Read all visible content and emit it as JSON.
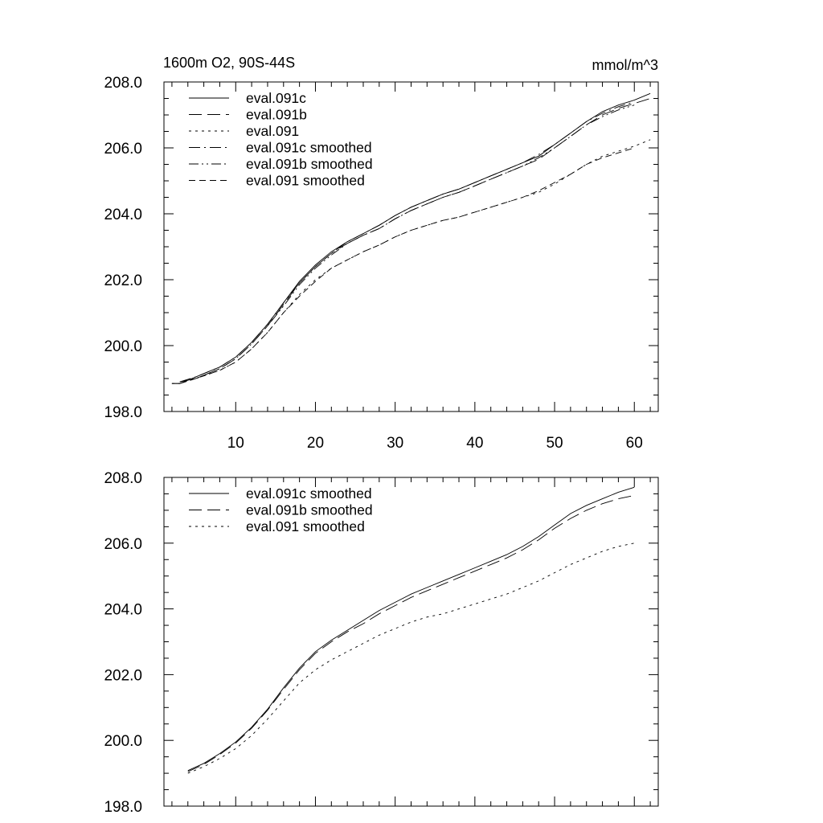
{
  "chart_data": [
    {
      "type": "line",
      "title": "1600m O2, 90S-44S",
      "units": "mmol/m^3",
      "xlim": [
        1,
        63
      ],
      "ylim": [
        198,
        208
      ],
      "yticks": [
        "198.0",
        "200.0",
        "202.0",
        "204.0",
        "206.0",
        "208.0"
      ],
      "xticks": [
        "10",
        "20",
        "30",
        "40",
        "50",
        "60"
      ],
      "grid": false,
      "legend_position": "top-left",
      "series": [
        {
          "name": "eval.091c",
          "dash": "solid",
          "x": [
            2,
            3,
            5,
            8,
            10,
            12,
            14,
            16,
            18,
            20,
            22,
            24,
            26,
            28,
            30,
            32,
            34,
            36,
            38,
            40,
            42,
            44,
            46,
            48,
            50,
            52,
            54,
            56,
            58,
            60,
            62
          ],
          "values": [
            198.85,
            198.85,
            199.05,
            199.35,
            199.65,
            200.1,
            200.65,
            201.3,
            201.95,
            202.45,
            202.85,
            203.15,
            203.4,
            203.65,
            203.95,
            204.2,
            204.4,
            204.6,
            204.75,
            204.95,
            205.15,
            205.35,
            205.55,
            205.75,
            206.1,
            206.45,
            206.8,
            207.1,
            207.3,
            207.45,
            207.65
          ]
        },
        {
          "name": "eval.091b",
          "dash": "long-dash",
          "x": [
            2,
            3,
            5,
            8,
            10,
            12,
            14,
            16,
            18,
            20,
            22,
            24,
            26,
            28,
            30,
            32,
            34,
            36,
            38,
            40,
            42,
            44,
            46,
            48,
            50,
            52,
            54,
            56,
            58,
            60,
            62
          ],
          "values": [
            198.85,
            198.85,
            199.0,
            199.3,
            199.6,
            200.05,
            200.6,
            201.25,
            201.9,
            202.4,
            202.8,
            203.1,
            203.35,
            203.55,
            203.85,
            204.1,
            204.3,
            204.5,
            204.65,
            204.85,
            205.05,
            205.25,
            205.45,
            205.65,
            206.0,
            206.35,
            206.7,
            207.0,
            207.2,
            207.35,
            207.5
          ]
        },
        {
          "name": "eval.091",
          "dash": "dotted",
          "x": [
            2,
            3,
            5,
            8,
            10,
            12,
            14,
            16,
            18,
            20,
            22,
            24,
            26,
            28,
            30,
            32,
            34,
            36,
            38,
            40,
            42,
            44,
            46,
            48,
            50,
            52,
            54,
            56,
            58,
            60,
            62
          ],
          "values": [
            198.85,
            198.85,
            199.0,
            199.25,
            199.5,
            199.9,
            200.4,
            201.0,
            201.55,
            202.0,
            202.35,
            202.6,
            202.85,
            203.05,
            203.3,
            203.5,
            203.65,
            203.8,
            203.9,
            204.05,
            204.2,
            204.35,
            204.5,
            204.65,
            204.9,
            205.2,
            205.5,
            205.75,
            205.9,
            206.05,
            206.25
          ]
        },
        {
          "name": "eval.091c smoothed",
          "dash": "dash-dot",
          "x": [
            3,
            5,
            8,
            10,
            12,
            14,
            16,
            18,
            20,
            22,
            24,
            26,
            28,
            30,
            32,
            34,
            36,
            38,
            40,
            42,
            44,
            46,
            48,
            50,
            52,
            54,
            56,
            58,
            60
          ],
          "values": [
            198.9,
            199.05,
            199.35,
            199.65,
            200.1,
            200.65,
            201.3,
            201.9,
            202.4,
            202.8,
            203.15,
            203.4,
            203.65,
            203.95,
            204.2,
            204.4,
            204.6,
            204.75,
            204.95,
            205.15,
            205.35,
            205.55,
            205.8,
            206.1,
            206.45,
            206.8,
            207.05,
            207.25,
            207.4
          ]
        },
        {
          "name": "eval.091b smoothed",
          "dash": "dash-dot-dot",
          "x": [
            3,
            5,
            8,
            10,
            12,
            14,
            16,
            18,
            20,
            22,
            24,
            26,
            28,
            30,
            32,
            34,
            36,
            38,
            40,
            42,
            44,
            46,
            48,
            50,
            52,
            54,
            56,
            58,
            60
          ],
          "values": [
            198.9,
            199.0,
            199.3,
            199.6,
            200.05,
            200.6,
            201.2,
            201.85,
            202.35,
            202.75,
            203.1,
            203.35,
            203.55,
            203.85,
            204.1,
            204.3,
            204.5,
            204.65,
            204.85,
            205.05,
            205.25,
            205.45,
            205.7,
            206.0,
            206.35,
            206.7,
            206.95,
            207.15,
            207.3
          ]
        },
        {
          "name": "eval.091 smoothed",
          "dash": "short-dash",
          "x": [
            3,
            5,
            8,
            10,
            12,
            14,
            16,
            18,
            20,
            22,
            24,
            26,
            28,
            30,
            32,
            34,
            36,
            38,
            40,
            42,
            44,
            46,
            48,
            50,
            52,
            54,
            56,
            58,
            60
          ],
          "values": [
            198.9,
            199.0,
            199.25,
            199.5,
            199.9,
            200.4,
            201.0,
            201.5,
            201.95,
            202.35,
            202.6,
            202.85,
            203.05,
            203.3,
            203.5,
            203.65,
            203.8,
            203.9,
            204.05,
            204.2,
            204.35,
            204.5,
            204.7,
            204.95,
            205.2,
            205.5,
            205.7,
            205.85,
            206.0
          ]
        }
      ]
    },
    {
      "type": "line",
      "xlim": [
        1,
        63
      ],
      "ylim": [
        198,
        208
      ],
      "yticks": [
        "198.0",
        "200.0",
        "202.0",
        "204.0",
        "206.0",
        "208.0"
      ],
      "grid": false,
      "legend_position": "top-left",
      "series": [
        {
          "name": "eval.091c smoothed",
          "dash": "solid",
          "x": [
            4,
            6,
            8,
            10,
            12,
            14,
            16,
            18,
            20,
            22,
            24,
            26,
            28,
            30,
            32,
            34,
            36,
            38,
            40,
            42,
            44,
            46,
            48,
            50,
            52,
            54,
            56,
            58,
            60
          ],
          "values": [
            199.08,
            199.3,
            199.6,
            199.95,
            200.4,
            200.95,
            201.6,
            202.2,
            202.7,
            203.05,
            203.35,
            203.65,
            203.95,
            204.2,
            204.45,
            204.65,
            204.85,
            205.05,
            205.25,
            205.45,
            205.65,
            205.9,
            206.2,
            206.55,
            206.9,
            207.15,
            207.35,
            207.55,
            207.7
          ]
        },
        {
          "name": "eval.091b smoothed",
          "dash": "long-dash",
          "x": [
            4,
            6,
            8,
            10,
            12,
            14,
            16,
            18,
            20,
            22,
            24,
            26,
            28,
            30,
            32,
            34,
            36,
            38,
            40,
            42,
            44,
            46,
            48,
            50,
            52,
            54,
            56,
            58,
            60
          ],
          "values": [
            199.05,
            199.27,
            199.57,
            199.92,
            200.37,
            200.92,
            201.55,
            202.15,
            202.65,
            203.0,
            203.3,
            203.55,
            203.85,
            204.1,
            204.35,
            204.55,
            204.75,
            204.95,
            205.15,
            205.35,
            205.55,
            205.8,
            206.1,
            206.45,
            206.75,
            207.0,
            207.2,
            207.35,
            207.45
          ]
        },
        {
          "name": "eval.091 smoothed",
          "dash": "dotted",
          "x": [
            4,
            6,
            8,
            10,
            12,
            14,
            16,
            18,
            20,
            22,
            24,
            26,
            28,
            30,
            32,
            34,
            36,
            38,
            40,
            42,
            44,
            46,
            48,
            50,
            52,
            54,
            56,
            58,
            60
          ],
          "values": [
            199.0,
            199.2,
            199.45,
            199.75,
            200.15,
            200.65,
            201.2,
            201.75,
            202.15,
            202.45,
            202.7,
            202.95,
            203.2,
            203.4,
            203.6,
            203.75,
            203.85,
            204.0,
            204.15,
            204.3,
            204.45,
            204.65,
            204.85,
            205.1,
            205.35,
            205.55,
            205.75,
            205.9,
            206.0
          ]
        }
      ]
    }
  ]
}
